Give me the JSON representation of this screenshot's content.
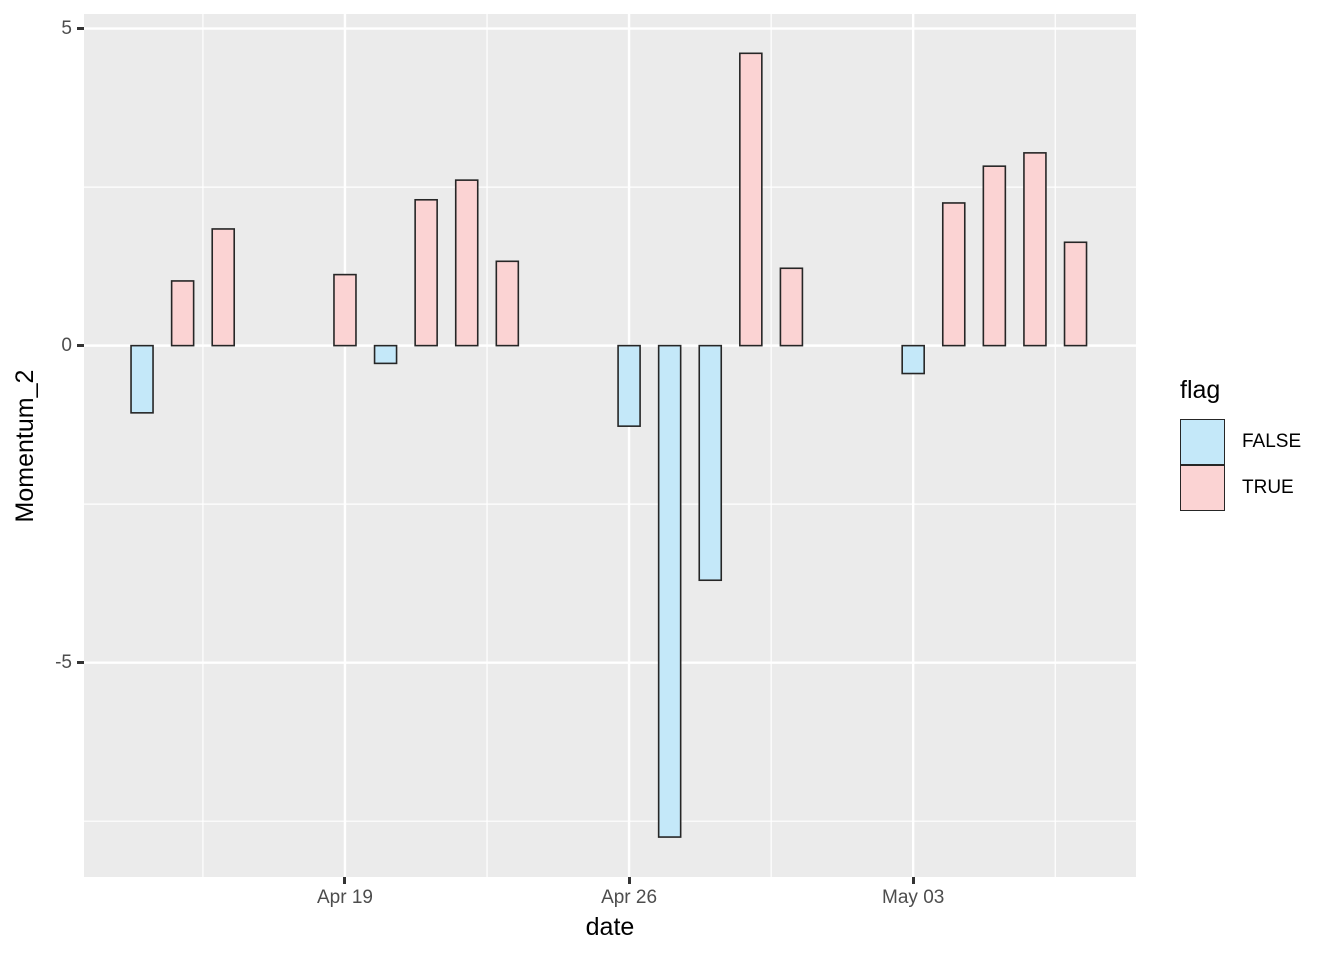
{
  "chart_data": {
    "type": "bar",
    "title": "",
    "xlabel": "date",
    "ylabel": "Momentum_2",
    "grid": true,
    "legend_position": "right",
    "legend": {
      "title": "flag",
      "items": [
        {
          "label": "FALSE",
          "color": "#C4E8F9"
        },
        {
          "label": "TRUE",
          "color": "#FBD3D3"
        }
      ]
    },
    "x_axis": {
      "major_ticks": [
        {
          "label": "Apr 19",
          "day": 5
        },
        {
          "label": "Apr 26",
          "day": 12
        },
        {
          "label": "May 03",
          "day": 19
        }
      ],
      "minor_grid_days": [
        1.5,
        8.5,
        15.5,
        22.5
      ],
      "xlim_days": [
        -1.43,
        24.49
      ]
    },
    "y_axis": {
      "major_ticks": [
        {
          "label": "5",
          "value": 5
        },
        {
          "label": "0",
          "value": 0
        },
        {
          "label": "-5",
          "value": -5
        }
      ],
      "minor_grid_values": [
        2.5,
        -2.5,
        -7.5
      ],
      "ylim": [
        -8.38,
        5.23
      ]
    },
    "bars": [
      {
        "date": "Apr 14",
        "day": 0,
        "value": -1.06,
        "flag": "FALSE"
      },
      {
        "date": "Apr 15",
        "day": 1,
        "value": 1.02,
        "flag": "TRUE"
      },
      {
        "date": "Apr 16",
        "day": 2,
        "value": 1.84,
        "flag": "TRUE"
      },
      {
        "date": "Apr 19",
        "day": 5,
        "value": 1.12,
        "flag": "TRUE"
      },
      {
        "date": "Apr 20",
        "day": 6,
        "value": -0.28,
        "flag": "FALSE"
      },
      {
        "date": "Apr 21",
        "day": 7,
        "value": 2.3,
        "flag": "TRUE"
      },
      {
        "date": "Apr 22",
        "day": 8,
        "value": 2.61,
        "flag": "TRUE"
      },
      {
        "date": "Apr 23",
        "day": 9,
        "value": 1.33,
        "flag": "TRUE"
      },
      {
        "date": "Apr 26",
        "day": 12,
        "value": -1.27,
        "flag": "FALSE"
      },
      {
        "date": "Apr 27",
        "day": 13,
        "value": -7.75,
        "flag": "FALSE"
      },
      {
        "date": "Apr 28",
        "day": 14,
        "value": -3.7,
        "flag": "FALSE"
      },
      {
        "date": "Apr 29",
        "day": 15,
        "value": 4.61,
        "flag": "TRUE"
      },
      {
        "date": "Apr 30",
        "day": 16,
        "value": 1.22,
        "flag": "TRUE"
      },
      {
        "date": "May 03",
        "day": 19,
        "value": -0.44,
        "flag": "FALSE"
      },
      {
        "date": "May 04",
        "day": 20,
        "value": 2.25,
        "flag": "TRUE"
      },
      {
        "date": "May 05",
        "day": 21,
        "value": 2.83,
        "flag": "TRUE"
      },
      {
        "date": "May 06",
        "day": 22,
        "value": 3.04,
        "flag": "TRUE"
      },
      {
        "date": "May 07",
        "day": 23,
        "value": 1.63,
        "flag": "TRUE"
      }
    ],
    "style": {
      "panel_bg": "#EBEBEB",
      "grid_color": "#FFFFFF",
      "bar_border": "#262626",
      "tick_label_color": "#4D4D4D",
      "title_color": "#000000",
      "tick_mark_color": "#333333",
      "background": "#FFFFFF"
    }
  }
}
